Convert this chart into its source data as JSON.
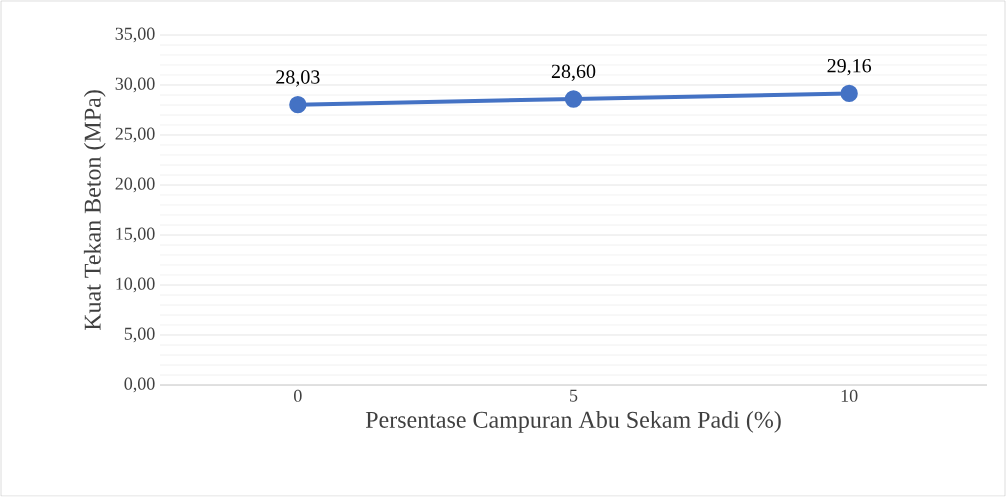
{
  "chart_data": {
    "type": "line",
    "xlabel": "Persentase Campuran Abu Sekam Padi (%)",
    "ylabel": "Kuat Tekan Beton (MPa)",
    "categories": [
      "0",
      "5",
      "10"
    ],
    "series": [
      {
        "color": "#4472c4",
        "values": [
          28.03,
          28.6,
          29.16
        ],
        "value_labels": [
          "28,03",
          "28,60",
          "29,16"
        ]
      }
    ],
    "ylim": [
      0,
      35
    ],
    "yticks": [
      {
        "value": 0,
        "label": "0,00"
      },
      {
        "value": 5,
        "label": "5,00"
      },
      {
        "value": 10,
        "label": "10,00"
      },
      {
        "value": 15,
        "label": "15,00"
      },
      {
        "value": 20,
        "label": "20,00"
      },
      {
        "value": 25,
        "label": "25,00"
      },
      {
        "value": 30,
        "label": "30,00"
      },
      {
        "value": 35,
        "label": "35,00"
      }
    ],
    "grid": "y",
    "marker": "circle",
    "line_style": "solid"
  }
}
